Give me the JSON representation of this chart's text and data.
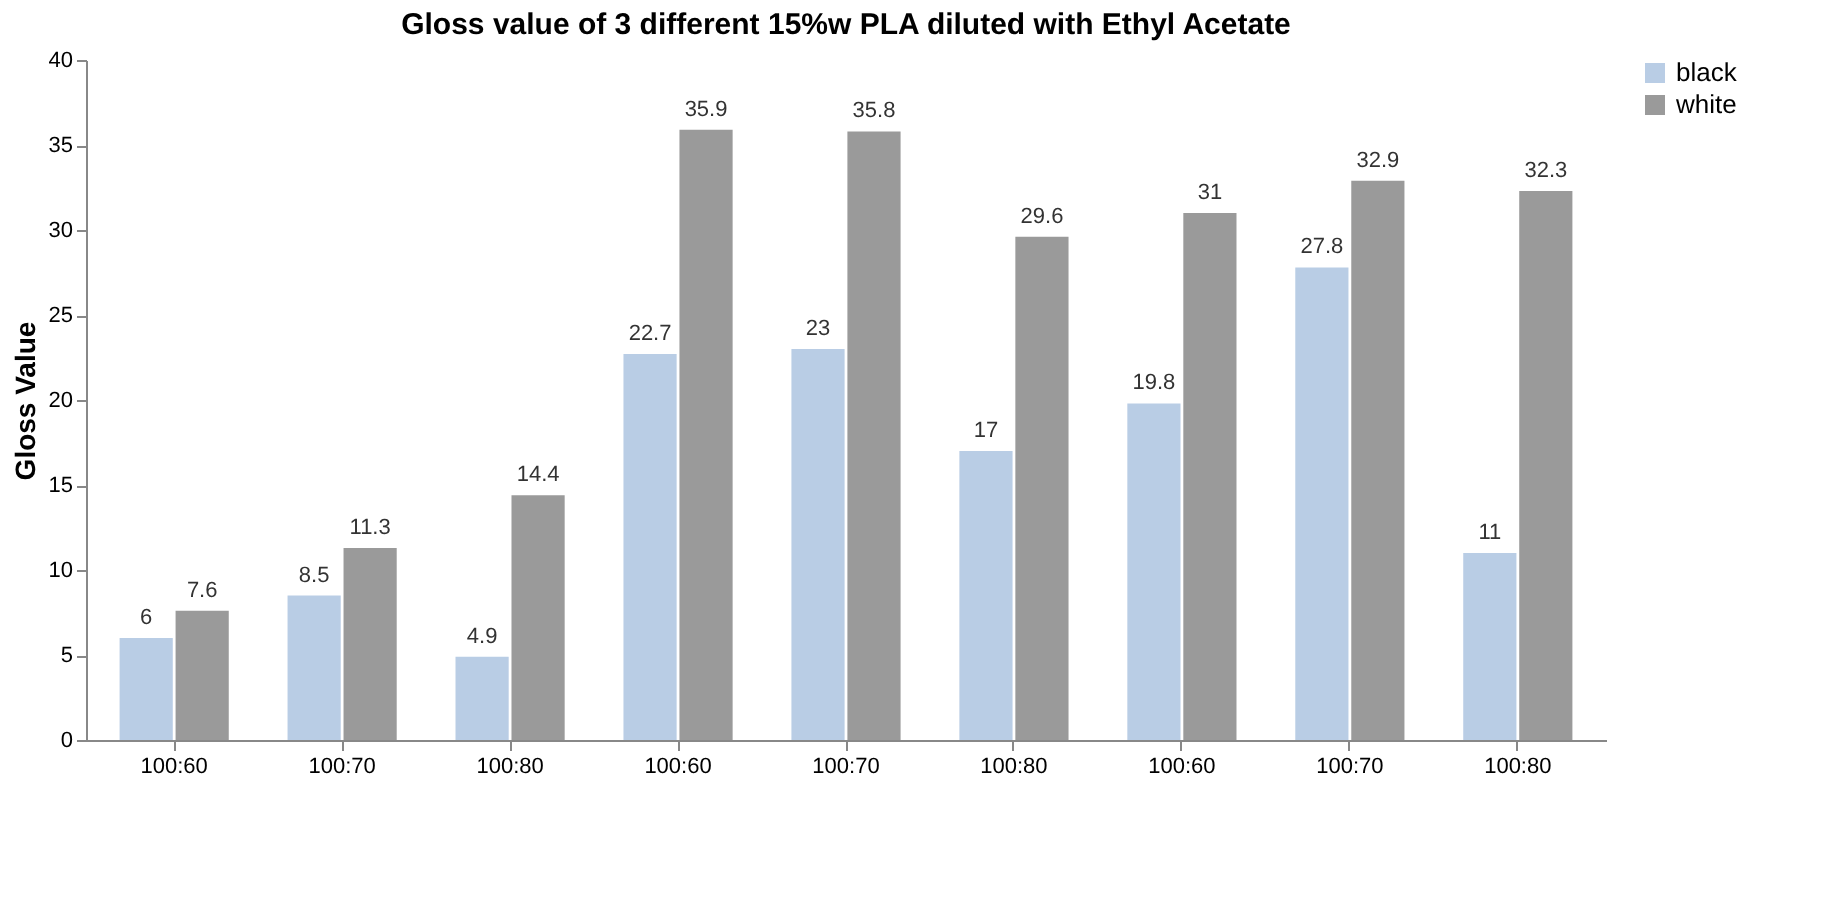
{
  "chart_data": {
    "type": "bar",
    "title": "Gloss value of 3 different 15%w PLA diluted with Ethyl Acetate",
    "ylabel": "Gloss Value",
    "categories": [
      "100:60",
      "100:70",
      "100:80",
      "100:60",
      "100:70",
      "100:80",
      "100:60",
      "100:70",
      "100:80"
    ],
    "series": [
      {
        "name": "black",
        "color": "#b9cde5",
        "values": [
          6,
          8.5,
          4.9,
          22.7,
          23,
          17,
          19.8,
          27.8,
          11
        ]
      },
      {
        "name": "white",
        "color": "#9a9a9a",
        "values": [
          7.6,
          11.3,
          14.4,
          35.9,
          35.8,
          29.6,
          31,
          32.9,
          32.3
        ]
      }
    ],
    "ylim": [
      0,
      40
    ],
    "yticks": [
      0,
      5,
      10,
      15,
      20,
      25,
      30,
      35,
      40
    ],
    "grid": false,
    "legend": "right",
    "data_labels": true
  }
}
